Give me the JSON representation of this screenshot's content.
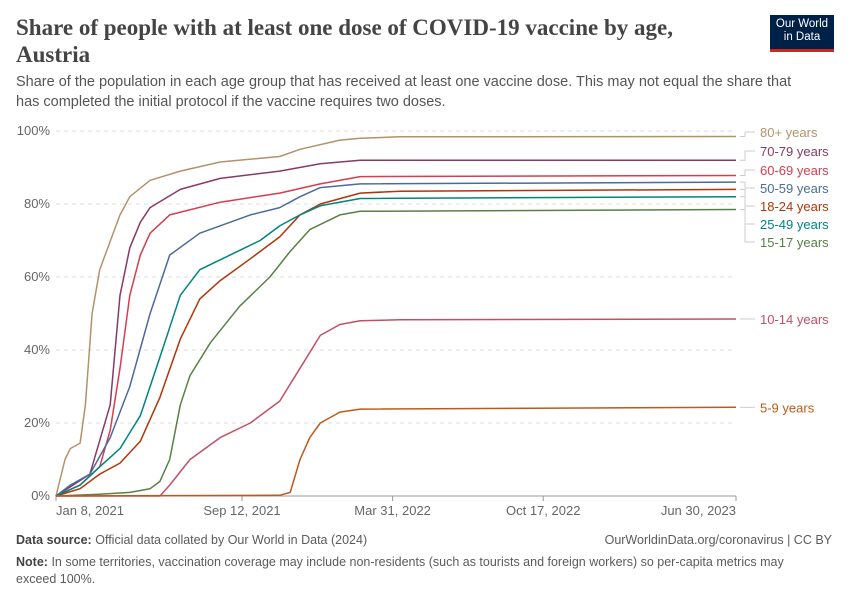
{
  "header": {
    "title": "Share of people with at least one dose of COVID-19 vaccine by age, Austria",
    "subtitle": "Share of the population in each age group that has received at least one vaccine dose. This may not equal the share that has completed the initial protocol if the vaccine requires two doses.",
    "logo": "Our World in Data"
  },
  "footer": {
    "source_label": "Data source:",
    "source": "Official data collated by Our World in Data (2024)",
    "url": "OurWorldinData.org/coronavirus | CC BY",
    "note_label": "Note:",
    "note": "In some territories, vaccination coverage may include non-residents (such as tourists and foreign workers) so per-capita metrics may exceed 100%."
  },
  "chart_data": {
    "type": "line",
    "title": "Share of people with at least one dose of COVID-19 vaccine by age, Austria",
    "xlim": [
      "2021-01-08",
      "2023-06-30"
    ],
    "ylim": [
      0,
      100
    ],
    "grid": "horizontal dashed",
    "xticks": [
      "Jan 8, 2021",
      "Sep 12, 2021",
      "Mar 31, 2022",
      "Oct 17, 2022",
      "Jun 30, 2023"
    ],
    "xtick_dates": [
      "2021-01-08",
      "2021-09-12",
      "2022-03-31",
      "2022-10-17",
      "2023-06-30"
    ],
    "yticks": [
      "0%",
      "20%",
      "40%",
      "60%",
      "80%",
      "100%"
    ],
    "ytick_values": [
      0,
      20,
      40,
      60,
      80,
      100
    ],
    "legend": "right, line-end labels",
    "series": [
      {
        "name": "80+ years",
        "color": "#b3926a",
        "points": [
          [
            "2021-01-08",
            0
          ],
          [
            "2021-01-20",
            10
          ],
          [
            "2021-01-27",
            13
          ],
          [
            "2021-02-09",
            14.5
          ],
          [
            "2021-02-16",
            25
          ],
          [
            "2021-02-25",
            50
          ],
          [
            "2021-03-07",
            62
          ],
          [
            "2021-04-03",
            77
          ],
          [
            "2021-04-16",
            82
          ],
          [
            "2021-05-13",
            86.5
          ],
          [
            "2021-06-22",
            89
          ],
          [
            "2021-08-14",
            91.5
          ],
          [
            "2021-11-01",
            93
          ],
          [
            "2021-11-28",
            95
          ],
          [
            "2022-01-20",
            97.5
          ],
          [
            "2022-02-16",
            98
          ],
          [
            "2022-04-10",
            98.4
          ],
          [
            "2023-06-30",
            98.5
          ]
        ]
      },
      {
        "name": "70-79 years",
        "color": "#883a63",
        "points": [
          [
            "2021-01-08",
            0
          ],
          [
            "2021-01-27",
            2.5
          ],
          [
            "2021-02-22",
            6
          ],
          [
            "2021-03-21",
            25
          ],
          [
            "2021-04-03",
            55
          ],
          [
            "2021-04-16",
            68
          ],
          [
            "2021-04-30",
            75
          ],
          [
            "2021-05-13",
            79
          ],
          [
            "2021-06-22",
            84
          ],
          [
            "2021-08-14",
            87
          ],
          [
            "2021-11-01",
            89
          ],
          [
            "2021-12-25",
            91
          ],
          [
            "2022-02-16",
            92
          ],
          [
            "2023-06-30",
            92
          ]
        ]
      },
      {
        "name": "60-69 years",
        "color": "#d73c50",
        "points": [
          [
            "2021-01-08",
            0
          ],
          [
            "2021-02-09",
            3
          ],
          [
            "2021-03-07",
            8
          ],
          [
            "2021-03-21",
            18
          ],
          [
            "2021-04-03",
            35
          ],
          [
            "2021-04-16",
            55
          ],
          [
            "2021-04-30",
            66
          ],
          [
            "2021-05-13",
            72
          ],
          [
            "2021-06-08",
            77
          ],
          [
            "2021-08-14",
            80.5
          ],
          [
            "2021-11-01",
            83
          ],
          [
            "2021-12-25",
            85.5
          ],
          [
            "2022-02-16",
            87.5
          ],
          [
            "2023-06-30",
            87.8
          ]
        ]
      },
      {
        "name": "50-59 years",
        "color": "#4c6a9c",
        "points": [
          [
            "2021-01-08",
            0
          ],
          [
            "2021-01-27",
            3
          ],
          [
            "2021-02-22",
            6
          ],
          [
            "2021-03-21",
            16
          ],
          [
            "2021-04-16",
            30
          ],
          [
            "2021-05-13",
            50
          ],
          [
            "2021-06-08",
            66
          ],
          [
            "2021-07-18",
            72
          ],
          [
            "2021-09-23",
            77
          ],
          [
            "2021-11-01",
            79
          ],
          [
            "2021-11-28",
            82
          ],
          [
            "2021-12-25",
            84.5
          ],
          [
            "2022-02-16",
            85.5
          ],
          [
            "2023-06-30",
            86
          ]
        ]
      },
      {
        "name": "18-24 years",
        "color": "#b13507",
        "points": [
          [
            "2021-01-08",
            0
          ],
          [
            "2021-02-09",
            2
          ],
          [
            "2021-03-07",
            6
          ],
          [
            "2021-04-03",
            9
          ],
          [
            "2021-04-30",
            15
          ],
          [
            "2021-05-26",
            27
          ],
          [
            "2021-06-22",
            43
          ],
          [
            "2021-07-18",
            54
          ],
          [
            "2021-08-14",
            59
          ],
          [
            "2021-09-23",
            65
          ],
          [
            "2021-11-01",
            71
          ],
          [
            "2021-11-28",
            77
          ],
          [
            "2021-12-25",
            80
          ],
          [
            "2022-02-16",
            83
          ],
          [
            "2022-04-10",
            83.5
          ],
          [
            "2023-06-30",
            84
          ]
        ]
      },
      {
        "name": "25-49 years",
        "color": "#00847e",
        "points": [
          [
            "2021-01-08",
            0
          ],
          [
            "2021-02-09",
            3
          ],
          [
            "2021-03-07",
            8
          ],
          [
            "2021-04-03",
            13
          ],
          [
            "2021-04-30",
            22
          ],
          [
            "2021-05-26",
            38
          ],
          [
            "2021-06-22",
            55
          ],
          [
            "2021-07-18",
            62
          ],
          [
            "2021-08-27",
            66
          ],
          [
            "2021-10-06",
            70
          ],
          [
            "2021-11-01",
            74
          ],
          [
            "2021-11-28",
            77
          ],
          [
            "2021-12-25",
            79.5
          ],
          [
            "2022-02-16",
            81.5
          ],
          [
            "2023-06-30",
            82
          ]
        ]
      },
      {
        "name": "15-17 years",
        "color": "#578145",
        "points": [
          [
            "2021-01-08",
            0
          ],
          [
            "2021-03-07",
            0.5
          ],
          [
            "2021-04-16",
            1
          ],
          [
            "2021-05-13",
            2
          ],
          [
            "2021-05-26",
            4
          ],
          [
            "2021-06-08",
            10
          ],
          [
            "2021-06-22",
            25
          ],
          [
            "2021-07-05",
            33
          ],
          [
            "2021-08-01",
            42
          ],
          [
            "2021-09-09",
            52
          ],
          [
            "2021-10-19",
            60
          ],
          [
            "2021-11-15",
            67
          ],
          [
            "2021-12-11",
            73
          ],
          [
            "2022-01-20",
            77
          ],
          [
            "2022-02-16",
            78
          ],
          [
            "2023-06-30",
            78.5
          ]
        ]
      },
      {
        "name": "10-14 years",
        "color": "#c15065",
        "points": [
          [
            "2021-01-08",
            0
          ],
          [
            "2021-05-26",
            0
          ],
          [
            "2021-06-08",
            3
          ],
          [
            "2021-07-05",
            10
          ],
          [
            "2021-08-14",
            16
          ],
          [
            "2021-09-23",
            20
          ],
          [
            "2021-11-01",
            26
          ],
          [
            "2021-11-28",
            35
          ],
          [
            "2021-12-25",
            44
          ],
          [
            "2022-01-20",
            47
          ],
          [
            "2022-02-16",
            48
          ],
          [
            "2022-04-10",
            48.3
          ],
          [
            "2023-06-30",
            48.5
          ]
        ]
      },
      {
        "name": "5-9 years",
        "color": "#c05917",
        "points": [
          [
            "2021-01-08",
            0
          ],
          [
            "2021-11-01",
            0.2
          ],
          [
            "2021-11-15",
            1
          ],
          [
            "2021-11-28",
            10
          ],
          [
            "2021-12-11",
            16
          ],
          [
            "2021-12-25",
            20
          ],
          [
            "2022-01-20",
            23
          ],
          [
            "2022-02-16",
            23.8
          ],
          [
            "2023-06-30",
            24.3
          ]
        ]
      }
    ]
  }
}
